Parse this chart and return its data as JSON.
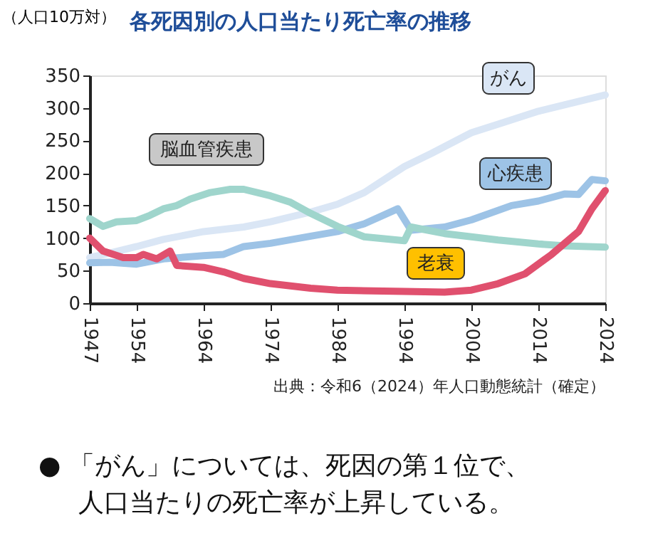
{
  "chart_data": {
    "type": "line",
    "title": "各死因別の人口当たり死亡率の推移",
    "ylabel": "（人口10万対）",
    "xlim": [
      1947,
      2024
    ],
    "xticks": [
      1947,
      1954,
      1964,
      1974,
      1984,
      1994,
      2004,
      2014,
      2024
    ],
    "ylim": [
      0,
      350
    ],
    "yticks": [
      0,
      50,
      100,
      150,
      200,
      250,
      300,
      350
    ],
    "grid": false,
    "marker": "none",
    "line_style": "solid",
    "series": [
      {
        "name": "がん",
        "color": "#dae6f5",
        "x": [
          1947,
          1950,
          1954,
          1958,
          1964,
          1970,
          1974,
          1980,
          1984,
          1988,
          1994,
          1998,
          2004,
          2008,
          2014,
          2018,
          2024
        ],
        "values": [
          70,
          77,
          87,
          98,
          110,
          117,
          125,
          140,
          152,
          170,
          210,
          230,
          262,
          275,
          295,
          305,
          320
        ]
      },
      {
        "name": "心疾患",
        "color": "#9dc3e6",
        "x": [
          1947,
          1950,
          1954,
          1958,
          1964,
          1967,
          1970,
          1974,
          1980,
          1984,
          1988,
          1993,
          1995,
          2000,
          2004,
          2010,
          2014,
          2018,
          2020,
          2022,
          2024
        ],
        "values": [
          62,
          63,
          60,
          68,
          73,
          75,
          87,
          92,
          103,
          110,
          122,
          145,
          112,
          117,
          128,
          150,
          157,
          168,
          167,
          190,
          188
        ]
      },
      {
        "name": "脳血管疾患",
        "color": "#9fd5cc",
        "x": [
          1947,
          1949,
          1951,
          1954,
          1956,
          1958,
          1960,
          1962,
          1965,
          1968,
          1970,
          1974,
          1977,
          1980,
          1984,
          1988,
          1994,
          1995,
          2000,
          2004,
          2008,
          2014,
          2018,
          2024
        ],
        "values": [
          130,
          118,
          125,
          127,
          135,
          145,
          150,
          160,
          170,
          175,
          175,
          165,
          155,
          138,
          118,
          102,
          96,
          117,
          107,
          102,
          97,
          91,
          88,
          86
        ]
      },
      {
        "name": "老衰",
        "color": "#e0506e",
        "x": [
          1947,
          1949,
          1952,
          1954,
          1955,
          1957,
          1959,
          1960,
          1964,
          1967,
          1970,
          1974,
          1980,
          1984,
          1994,
          2000,
          2004,
          2008,
          2012,
          2016,
          2020,
          2022,
          2024
        ],
        "values": [
          100,
          80,
          70,
          70,
          75,
          68,
          80,
          58,
          55,
          48,
          38,
          30,
          23,
          20,
          18,
          17,
          20,
          30,
          45,
          75,
          110,
          145,
          173
        ]
      }
    ],
    "annotations": [
      "出典：令和6（2024）年人口動態統計（確定）",
      "● 「がん」については、死因の第１位で、",
      "人口当たりの死亡率が上昇している。"
    ]
  }
}
